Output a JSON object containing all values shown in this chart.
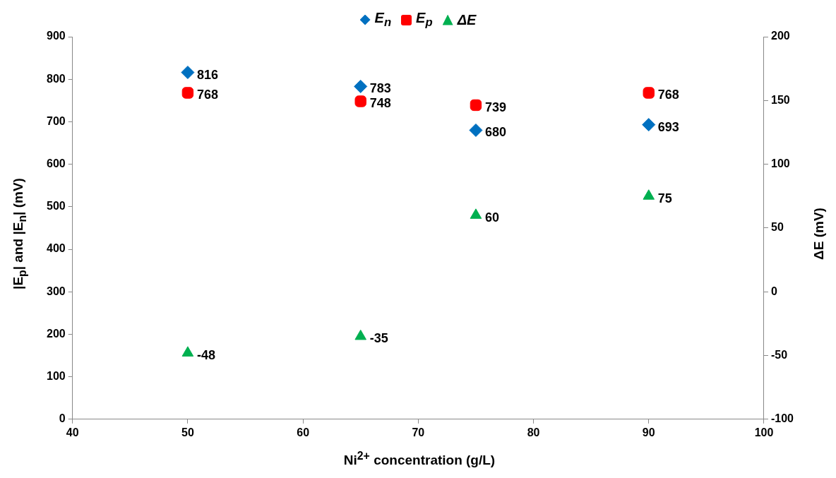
{
  "chart_data": {
    "type": "scatter",
    "xlabel": "Ni$^{2+}$ concentration (g/L)",
    "ylabel": "|E$_{p}$| and |E$_{n}$| (mV)",
    "y2label": "ΔE (mV)",
    "xlim": [
      40,
      100
    ],
    "xticks": [
      40,
      50,
      60,
      70,
      80,
      90,
      100
    ],
    "ylim": [
      0,
      900
    ],
    "yticks": [
      0,
      100,
      200,
      300,
      400,
      500,
      600,
      700,
      800,
      900
    ],
    "y2lim": [
      -100,
      200
    ],
    "y2ticks": [
      -100,
      -50,
      0,
      50,
      100,
      150,
      200
    ],
    "x": [
      50,
      65,
      75,
      90
    ],
    "legend": "top",
    "grid": false,
    "data_labels": true,
    "series": [
      {
        "name": "E$_{n}$",
        "color": "#0070c0",
        "marker": "diamond",
        "values": [
          816,
          783,
          680,
          693
        ]
      },
      {
        "name": "E$_{p}$",
        "color": "#ff0000",
        "marker": "square",
        "values": [
          768,
          748,
          739,
          768
        ]
      },
      {
        "name": "ΔE",
        "color": "#00b050",
        "marker": "triangle",
        "axis": "y2",
        "values": [
          -48,
          -35,
          60,
          75
        ]
      }
    ]
  }
}
